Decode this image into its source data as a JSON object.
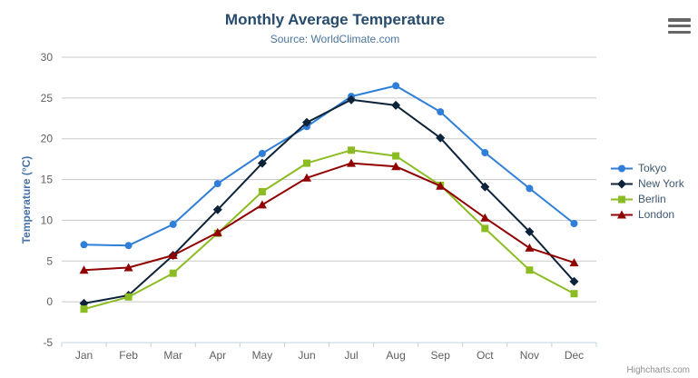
{
  "chart_data": {
    "type": "line",
    "title": "Monthly Average Temperature",
    "subtitle": "Source: WorldClimate.com",
    "categories": [
      "Jan",
      "Feb",
      "Mar",
      "Apr",
      "May",
      "Jun",
      "Jul",
      "Aug",
      "Sep",
      "Oct",
      "Nov",
      "Dec"
    ],
    "series": [
      {
        "name": "Tokyo",
        "color": "#2f7ed8",
        "marker": "circle",
        "values": [
          7.0,
          6.9,
          9.5,
          14.5,
          18.2,
          21.5,
          25.2,
          26.5,
          23.3,
          18.3,
          13.9,
          9.6
        ]
      },
      {
        "name": "New York",
        "color": "#0d233a",
        "marker": "diamond",
        "values": [
          -0.2,
          0.8,
          5.7,
          11.3,
          17.0,
          22.0,
          24.8,
          24.1,
          20.1,
          14.1,
          8.6,
          2.5
        ]
      },
      {
        "name": "Berlin",
        "color": "#8bbc21",
        "marker": "square",
        "values": [
          -0.9,
          0.6,
          3.5,
          8.4,
          13.5,
          17.0,
          18.6,
          17.9,
          14.3,
          9.0,
          3.9,
          1.0
        ]
      },
      {
        "name": "London",
        "color": "#910000",
        "marker": "triangle",
        "values": [
          3.9,
          4.2,
          5.7,
          8.5,
          11.9,
          15.2,
          17.0,
          16.6,
          14.2,
          10.3,
          6.6,
          4.8
        ]
      }
    ],
    "xlabel": "",
    "ylabel": "Temperature (°C)",
    "ylim": [
      -5,
      30
    ],
    "yticks": [
      -5,
      0,
      5,
      10,
      15,
      20,
      25,
      30
    ],
    "grid": "horizontal",
    "legend_position": "right",
    "colors": {
      "title": "#274b6d",
      "subtitle": "#4d759e",
      "axis_title": "#4572a7",
      "tick_label": "#606060",
      "grid_line": "#c8c8c8",
      "axis_line": "#c0d0e0",
      "legend_text": "#3e576f",
      "credits": "#909090"
    }
  },
  "export_menu": {
    "icon": "hamburger-menu-icon"
  },
  "credits": {
    "label": "Highcharts.com"
  }
}
